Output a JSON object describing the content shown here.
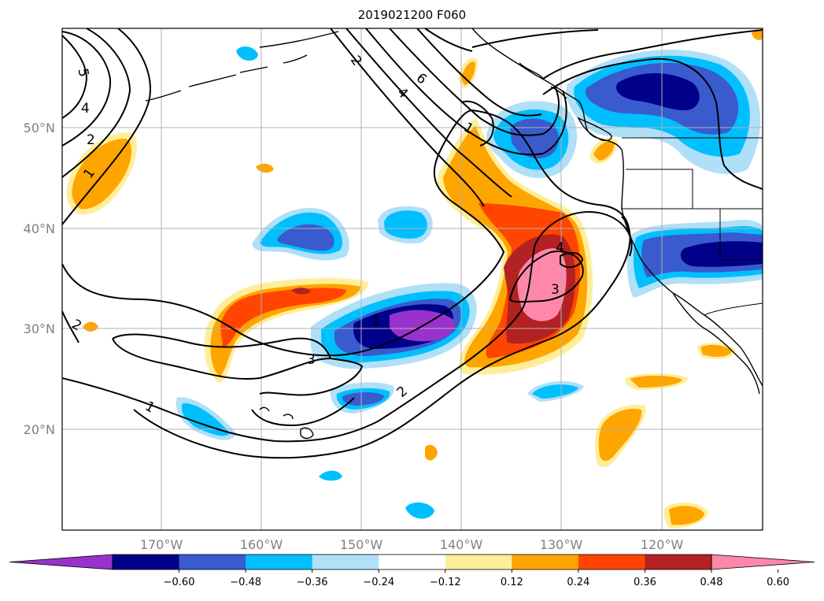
{
  "title": "2019021200 F060",
  "map": {
    "lat_labels": [
      "50°N",
      "40°N",
      "30°N",
      "20°N"
    ],
    "lon_labels": [
      "170°W",
      "160°W",
      "150°W",
      "140°W",
      "130°W",
      "120°W"
    ],
    "contour_labels": [
      "5",
      "4",
      "2",
      "1",
      "2",
      "4",
      "6",
      "1",
      "4",
      "3",
      "1",
      "3",
      "2",
      "1",
      "2"
    ],
    "colors": {
      "neg_060": "#9932cc",
      "neg_048": "#00008b",
      "neg_036": "#3a5bcd",
      "neg_024": "#00bfff",
      "neg_012": "#b0e0f8",
      "zero": "#ffffff",
      "pos_012": "#ffee99",
      "pos_024": "#ffa500",
      "pos_036": "#ff4500",
      "pos_048": "#b22222",
      "pos_060": "#ff88aa"
    }
  },
  "colorbar": {
    "ticks": [
      "−0.60",
      "−0.48",
      "−0.36",
      "−0.24",
      "−0.12",
      "0.12",
      "0.24",
      "0.36",
      "0.48",
      "0.60"
    ],
    "colors": [
      "#9932cc",
      "#00008b",
      "#3a5bcd",
      "#00bfff",
      "#b0e0f8",
      "#ffffff",
      "#ffee99",
      "#ffa500",
      "#ff4500",
      "#b22222",
      "#ff88aa"
    ]
  }
}
